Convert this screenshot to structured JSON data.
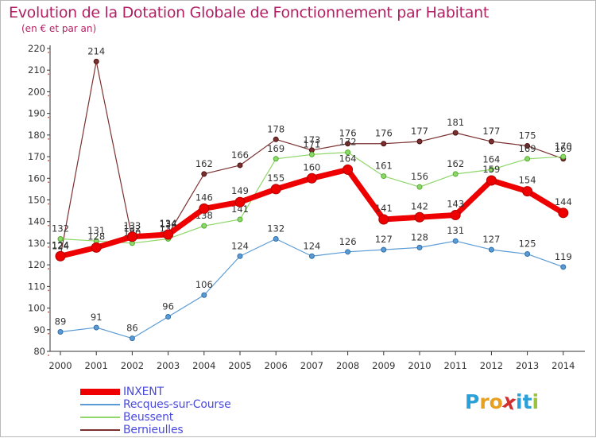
{
  "title": "Evolution de la Dotation Globale de Fonctionnement par Habitant",
  "subtitle": "(en € et par an)",
  "logo": {
    "letters": [
      "P",
      "r",
      "o",
      "x",
      "i",
      "t",
      "i"
    ],
    "colors": [
      "#2a9fd8",
      "#e8a020",
      "#e8a020",
      "#d03030",
      "#2a9fd8",
      "#2a9fd8",
      "#9ac23c"
    ]
  },
  "chart_data": {
    "type": "line",
    "x": [
      "2000",
      "2001",
      "2002",
      "2003",
      "2004",
      "2005",
      "2006",
      "2007",
      "2008",
      "2009",
      "2010",
      "2011",
      "2012",
      "2013",
      "2014"
    ],
    "ylim": [
      80,
      220
    ],
    "yticks": [
      80,
      90,
      100,
      110,
      120,
      130,
      140,
      150,
      160,
      170,
      180,
      190,
      200,
      210,
      220
    ],
    "grid": false,
    "legend": "bottom-left",
    "series": [
      {
        "name": "INXENT",
        "color": "#ee0000",
        "values": [
          124,
          128,
          133,
          134,
          146,
          149,
          155,
          160,
          164,
          141,
          142,
          143,
          159,
          154,
          144
        ]
      },
      {
        "name": "Recques-sur-Course",
        "color": "#5b9bd5",
        "values": [
          89,
          91,
          86,
          96,
          106,
          124,
          132,
          124,
          126,
          127,
          128,
          131,
          127,
          125,
          119
        ]
      },
      {
        "name": "Beussent",
        "color": "#8fd76a",
        "values": [
          132,
          131,
          130,
          132,
          138,
          141,
          169,
          171,
          172,
          161,
          156,
          162,
          164,
          169,
          170
        ]
      },
      {
        "name": "Bernieulles",
        "color": "#7b3030",
        "values": [
          124,
          214,
          132,
          134,
          162,
          166,
          178,
          173,
          176,
          176,
          177,
          181,
          177,
          175,
          169
        ]
      }
    ]
  }
}
